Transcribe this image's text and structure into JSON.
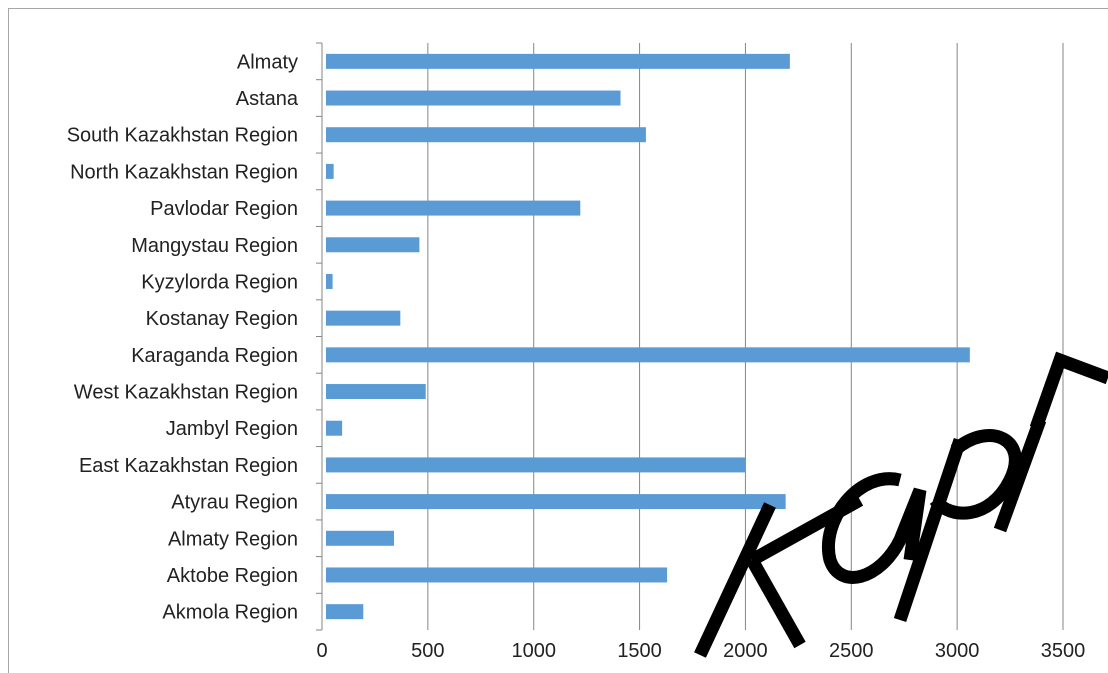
{
  "chart_data": {
    "type": "bar",
    "orientation": "horizontal",
    "categories": [
      "Almaty",
      "Astana",
      "South Kazakhstan Region",
      "North Kazakhstan Region",
      "Pavlodar Region",
      "Mangystau Region",
      "Kyzylorda Region",
      "Kostanay Region",
      "Karaganda Region",
      "West Kazakhstan Region",
      "Jambyl Region",
      "East Kazakhstan Region",
      "Atyrau Region",
      "Almaty Region",
      "Aktobe Region",
      "Akmola Region"
    ],
    "values": [
      2210,
      1410,
      1530,
      55,
      1220,
      460,
      50,
      370,
      3060,
      490,
      95,
      2000,
      2190,
      340,
      1630,
      195
    ],
    "title": "",
    "xlabel": "",
    "ylabel": "",
    "xlim": [
      0,
      3500
    ],
    "xticks": [
      "0",
      "500",
      "1000",
      "1500",
      "2000",
      "2500",
      "3000",
      "3500"
    ],
    "grid": true,
    "bar_color": "#5b9bd5",
    "grid_color": "#868686"
  },
  "watermark": {
    "text": "карГ",
    "color": "#000000"
  }
}
